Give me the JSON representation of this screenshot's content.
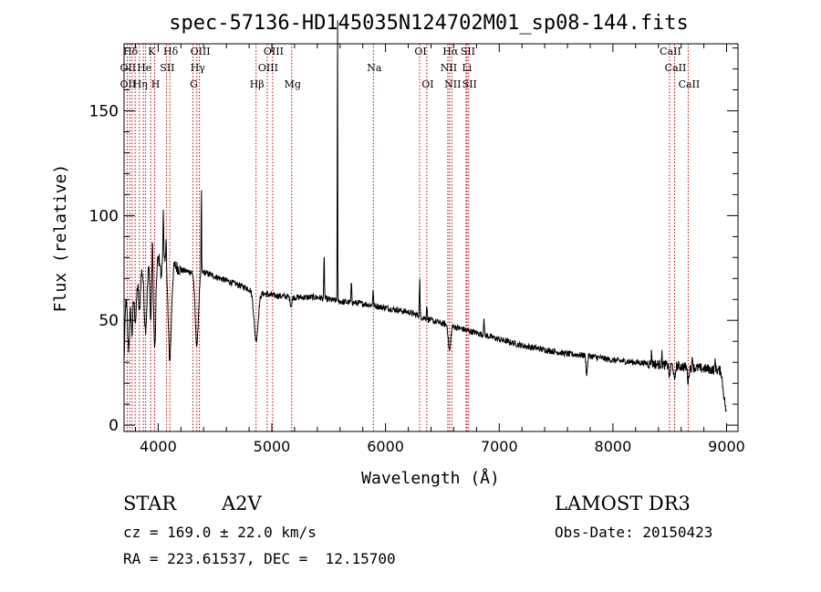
{
  "chart_data": {
    "type": "line",
    "title": "spec-57136-HD145035N124702M01_sp08-144.fits",
    "xlabel": "Wavelength (Å)",
    "ylabel": "Flux (relative)",
    "xlim": [
      3700,
      9100
    ],
    "ylim": [
      -3,
      182
    ],
    "xticks": [
      4000,
      5000,
      6000,
      7000,
      8000,
      9000
    ],
    "xtick_labels": [
      "4000",
      "5000",
      "6000",
      "7000",
      "8000",
      "9000"
    ],
    "yticks": [
      0,
      50,
      100,
      150
    ],
    "ytick_labels": [
      "0",
      "50",
      "100",
      "150"
    ],
    "grid": false,
    "series": [
      {
        "name": "spectrum",
        "continuum": [
          [
            3700,
            30
          ],
          [
            3715,
            60
          ],
          [
            3730,
            66
          ],
          [
            3760,
            68
          ],
          [
            3800,
            72
          ],
          [
            3850,
            74
          ],
          [
            3900,
            77
          ],
          [
            3950,
            77
          ],
          [
            4000,
            79
          ],
          [
            4050,
            78
          ],
          [
            4100,
            77
          ],
          [
            4150,
            76
          ],
          [
            4200,
            74
          ],
          [
            4300,
            73
          ],
          [
            4400,
            73
          ],
          [
            4500,
            71
          ],
          [
            4600,
            69
          ],
          [
            4700,
            67
          ],
          [
            4800,
            65
          ],
          [
            4900,
            63
          ],
          [
            5000,
            62
          ],
          [
            5200,
            61
          ],
          [
            5400,
            61
          ],
          [
            5600,
            59
          ],
          [
            5800,
            58
          ],
          [
            6000,
            56
          ],
          [
            6200,
            54
          ],
          [
            6400,
            50
          ],
          [
            6600,
            47
          ],
          [
            6800,
            44
          ],
          [
            7000,
            41
          ],
          [
            7200,
            38
          ],
          [
            7400,
            36
          ],
          [
            7600,
            34
          ],
          [
            7800,
            33
          ],
          [
            8000,
            31
          ],
          [
            8200,
            30
          ],
          [
            8400,
            29
          ],
          [
            8600,
            28
          ],
          [
            8800,
            27
          ],
          [
            8950,
            26
          ],
          [
            9000,
            4
          ]
        ],
        "features": [
          [
            3740,
            -30,
            10
          ],
          [
            3770,
            -25,
            8
          ],
          [
            3800,
            -22,
            10
          ],
          [
            3835,
            -20,
            8
          ],
          [
            3889,
            -30,
            12
          ],
          [
            3934,
            -28,
            6
          ],
          [
            3970,
            -42,
            9
          ],
          [
            4026,
            -8,
            5
          ],
          [
            4102,
            -45,
            14
          ],
          [
            4340,
            -35,
            14
          ],
          [
            4861,
            -23,
            18
          ],
          [
            5169,
            -4,
            8
          ],
          [
            6563,
            -12,
            10
          ],
          [
            7770,
            -9,
            6
          ],
          [
            8498,
            -6,
            5
          ],
          [
            8542,
            -8,
            6
          ],
          [
            8662,
            -7,
            6
          ],
          [
            3950,
            15,
            3
          ],
          [
            4045,
            26,
            3
          ],
          [
            4070,
            18,
            3
          ],
          [
            4380,
            45,
            2
          ],
          [
            5460,
            20,
            3
          ],
          [
            5577,
            100,
            2
          ],
          [
            5577,
            63,
            1.2
          ],
          [
            5700,
            10,
            3
          ],
          [
            5890,
            8,
            3
          ],
          [
            6300,
            18,
            3
          ],
          [
            6363,
            7,
            3
          ],
          [
            6865,
            9,
            3
          ],
          [
            8340,
            6,
            3
          ],
          [
            8430,
            5,
            3
          ],
          [
            8700,
            6,
            3
          ],
          [
            8900,
            5,
            3
          ]
        ],
        "noise_amplitude": 1.5
      }
    ],
    "line_labels": [
      {
        "name": "Hδ",
        "wavelength": 3750,
        "row": 0
      },
      {
        "name": "K",
        "wavelength": 3934,
        "row": 0
      },
      {
        "name": "Hδ",
        "wavelength": 4102,
        "row": 0
      },
      {
        "name": "OIII",
        "wavelength": 4363,
        "row": 0
      },
      {
        "name": "OIII",
        "wavelength": 5007,
        "row": 0
      },
      {
        "name": "OI",
        "wavelength": 6300,
        "row": 0
      },
      {
        "name": "Hα",
        "wavelength": 6563,
        "row": 0
      },
      {
        "name": "SII",
        "wavelength": 6716,
        "row": 0
      },
      {
        "name": "CaII",
        "wavelength": 8498,
        "row": 0
      },
      {
        "name": "OII",
        "wavelength": 3727,
        "row": 1
      },
      {
        "name": "He",
        "wavelength": 3870,
        "row": 1
      },
      {
        "name": "SII",
        "wavelength": 4072,
        "row": 1
      },
      {
        "name": "Hγ",
        "wavelength": 4340,
        "row": 1
      },
      {
        "name": "OIII",
        "wavelength": 4959,
        "row": 1
      },
      {
        "name": "Na",
        "wavelength": 5893,
        "row": 1
      },
      {
        "name": "NII",
        "wavelength": 6548,
        "row": 1
      },
      {
        "name": "Li",
        "wavelength": 6708,
        "row": 1
      },
      {
        "name": "CaII",
        "wavelength": 8542,
        "row": 1
      },
      {
        "name": "OII",
        "wavelength": 3727,
        "row": 2
      },
      {
        "name": "Hη",
        "wavelength": 3835,
        "row": 2
      },
      {
        "name": "H",
        "wavelength": 3969,
        "row": 2
      },
      {
        "name": "G",
        "wavelength": 4305,
        "row": 2
      },
      {
        "name": "Hβ",
        "wavelength": 4861,
        "row": 2
      },
      {
        "name": "Mg",
        "wavelength": 5175,
        "row": 2
      },
      {
        "name": "OI",
        "wavelength": 6363,
        "row": 2
      },
      {
        "name": "NII",
        "wavelength": 6583,
        "row": 2
      },
      {
        "name": "SII",
        "wavelength": 6731,
        "row": 2
      },
      {
        "name": "CaII",
        "wavelength": 8662,
        "row": 2
      }
    ],
    "marker_lines": [
      3727,
      3750,
      3771,
      3798,
      3835,
      3870,
      3889,
      3934,
      3969,
      4072,
      4102,
      4305,
      4340,
      4363,
      4861,
      4959,
      5007,
      5175,
      5893,
      6300,
      6363,
      6548,
      6563,
      6583,
      6708,
      6716,
      6731,
      8498,
      8542,
      8662
    ]
  },
  "info": {
    "object_class": "STAR",
    "subclass": "A2V",
    "survey": "LAMOST DR3",
    "redshift": "cz = 169.0 ± 22.0 km/s",
    "obs_date": "Obs-Date: 20150423",
    "coords": "RA = 223.61537, DEC =  12.15700"
  },
  "colors": {
    "marker": "#c00000",
    "line": "#000000",
    "background": "#ffffff"
  }
}
